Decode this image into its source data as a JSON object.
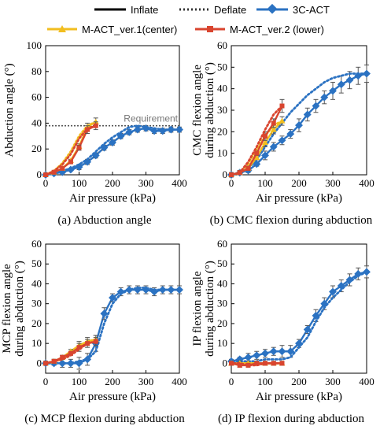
{
  "legend": {
    "items": [
      {
        "label": "Inflate",
        "style": "solid",
        "color": "#000000"
      },
      {
        "label": "Deflate",
        "style": "dotted",
        "color": "#333333"
      },
      {
        "label": "3C-ACT",
        "style": "marker",
        "color": "#2b72c2"
      },
      {
        "label": "M-ACT_ver.1(center)",
        "style": "marker",
        "color": "#f2be1f"
      },
      {
        "label": "M-ACT_ver.2 (lower)",
        "style": "marker",
        "color": "#d9452f"
      }
    ]
  },
  "colors": {
    "act3c": "#2b72c2",
    "ver1": "#f2be1f",
    "ver2": "#d9452f",
    "requirement": "#555555"
  },
  "chart_data": [
    {
      "id": "a",
      "type": "line",
      "caption": "(a) Abduction angle",
      "xlabel": "Air pressure (kPa)",
      "ylabel": [
        "Abduction angle (°)"
      ],
      "xlim": [
        0,
        400
      ],
      "ylim": [
        0,
        100
      ],
      "xticks": [
        0,
        100,
        200,
        300,
        400
      ],
      "yticks": [
        0,
        20,
        40,
        60,
        80,
        100
      ],
      "annotation": {
        "text": "Requirement",
        "y": 38
      },
      "series": [
        {
          "key": "act3c",
          "kind": "inflate",
          "x": [
            0,
            25,
            50,
            75,
            100,
            125,
            150,
            175,
            200,
            225,
            250,
            275,
            300,
            325,
            350,
            375,
            400
          ],
          "y": [
            0,
            1,
            2,
            4,
            6,
            10,
            15,
            21,
            25,
            30,
            33,
            35,
            36,
            34,
            34,
            35,
            35
          ],
          "err": [
            1,
            1,
            1,
            1,
            2,
            2,
            2,
            2,
            2,
            2,
            2,
            2,
            2,
            2,
            2,
            2,
            2
          ]
        },
        {
          "key": "act3c",
          "kind": "deflate",
          "x": [
            400,
            375,
            350,
            325,
            300,
            275,
            250,
            225,
            200,
            175,
            150,
            125,
            100,
            75,
            50,
            25,
            0
          ],
          "y": [
            35,
            35,
            35,
            36,
            37,
            38,
            37,
            33,
            29,
            24,
            18,
            12,
            8,
            5,
            3,
            1,
            0
          ]
        },
        {
          "key": "ver1",
          "kind": "inflate",
          "x": [
            0,
            25,
            50,
            75,
            100,
            125,
            150
          ],
          "y": [
            0,
            2,
            5,
            11,
            22,
            37,
            41
          ],
          "err": [
            1,
            1,
            1,
            1,
            2,
            3,
            3
          ]
        },
        {
          "key": "ver1",
          "kind": "deflate",
          "x": [
            150,
            125,
            100,
            75,
            50,
            25,
            0
          ],
          "y": [
            41,
            38,
            30,
            18,
            9,
            3,
            0
          ]
        },
        {
          "key": "ver2",
          "kind": "inflate",
          "x": [
            0,
            25,
            50,
            75,
            100,
            125,
            150
          ],
          "y": [
            0,
            2,
            5,
            10,
            21,
            35,
            38
          ],
          "err": [
            1,
            1,
            1,
            1,
            2,
            3,
            3
          ]
        },
        {
          "key": "ver2",
          "kind": "deflate",
          "x": [
            150,
            125,
            100,
            75,
            50,
            25,
            0
          ],
          "y": [
            38,
            36,
            28,
            16,
            8,
            3,
            0
          ]
        }
      ]
    },
    {
      "id": "b",
      "type": "line",
      "caption": "(b) CMC flexion during abduction",
      "xlabel": "Air pressure (kPa)",
      "ylabel": [
        "CMC flexion angle",
        "during abduction (°)"
      ],
      "xlim": [
        0,
        400
      ],
      "ylim": [
        0,
        60
      ],
      "xticks": [
        0,
        100,
        200,
        300,
        400
      ],
      "yticks": [
        0,
        10,
        20,
        30,
        40,
        50,
        60
      ],
      "series": [
        {
          "key": "act3c",
          "kind": "inflate",
          "x": [
            0,
            25,
            50,
            75,
            100,
            125,
            150,
            175,
            200,
            225,
            250,
            275,
            300,
            325,
            350,
            375,
            400
          ],
          "y": [
            0,
            1,
            2,
            5,
            9,
            13,
            16,
            19,
            23,
            28,
            32,
            36,
            39,
            42,
            44,
            46,
            47
          ],
          "err": [
            1,
            1,
            1,
            1,
            2,
            2,
            2,
            2,
            3,
            3,
            3,
            3,
            4,
            4,
            4,
            4,
            4
          ]
        },
        {
          "key": "act3c",
          "kind": "deflate",
          "x": [
            400,
            375,
            350,
            325,
            300,
            275,
            250,
            225,
            200,
            175,
            150,
            125,
            100,
            75,
            50,
            25,
            0
          ],
          "y": [
            47,
            47,
            47,
            46,
            45,
            43,
            40,
            37,
            33,
            29,
            24,
            19,
            13,
            7,
            3,
            1,
            0
          ]
        },
        {
          "key": "ver1",
          "kind": "inflate",
          "x": [
            0,
            25,
            50,
            75,
            100,
            125,
            150
          ],
          "y": [
            0,
            1,
            3,
            8,
            15,
            21,
            25
          ],
          "err": [
            1,
            1,
            1,
            1,
            2,
            2,
            2
          ]
        },
        {
          "key": "ver1",
          "kind": "deflate",
          "x": [
            150,
            125,
            100,
            75,
            50,
            25,
            0
          ],
          "y": [
            25,
            23,
            18,
            12,
            5,
            1,
            0
          ]
        },
        {
          "key": "ver2",
          "kind": "inflate",
          "x": [
            0,
            25,
            50,
            75,
            100,
            125,
            150
          ],
          "y": [
            0,
            1,
            3,
            10,
            18,
            24,
            32
          ],
          "err": [
            1,
            1,
            1,
            1,
            2,
            2,
            3
          ]
        },
        {
          "key": "ver2",
          "kind": "deflate",
          "x": [
            150,
            125,
            100,
            75,
            50,
            25,
            0
          ],
          "y": [
            32,
            28,
            21,
            13,
            6,
            1,
            0
          ]
        }
      ]
    },
    {
      "id": "c",
      "type": "line",
      "caption": "(c) MCP flexion during abduction",
      "xlabel": "Air pressure (kPa)",
      "ylabel": [
        "MCP flexion angle",
        "during abduction (°)"
      ],
      "xlim": [
        0,
        400
      ],
      "ylim": [
        -5,
        60
      ],
      "xticks": [
        0,
        100,
        200,
        300,
        400
      ],
      "yticks": [
        0,
        10,
        20,
        30,
        40,
        50,
        60
      ],
      "series": [
        {
          "key": "act3c",
          "kind": "inflate",
          "x": [
            0,
            25,
            50,
            75,
            100,
            125,
            150,
            175,
            200,
            225,
            250,
            275,
            300,
            325,
            350,
            375,
            400
          ],
          "y": [
            0,
            0,
            0,
            0,
            0,
            2,
            10,
            25,
            33,
            36,
            37,
            37,
            37,
            36,
            37,
            37,
            37
          ],
          "err": [
            1,
            1,
            2,
            2,
            3,
            3,
            4,
            3,
            2,
            2,
            2,
            2,
            2,
            2,
            2,
            2,
            2
          ]
        },
        {
          "key": "act3c",
          "kind": "deflate",
          "x": [
            400,
            375,
            350,
            325,
            300,
            275,
            250,
            225,
            200,
            175,
            150,
            125,
            100,
            75,
            50,
            25,
            0
          ],
          "y": [
            37,
            37,
            37,
            37,
            38,
            38,
            37,
            35,
            30,
            20,
            6,
            2,
            1,
            0,
            0,
            0,
            0
          ]
        },
        {
          "key": "ver1",
          "kind": "inflate",
          "x": [
            0,
            25,
            50,
            75,
            100,
            125,
            150
          ],
          "y": [
            0,
            1,
            3,
            6,
            9,
            11,
            12
          ],
          "err": [
            1,
            1,
            1,
            1,
            2,
            2,
            2
          ]
        },
        {
          "key": "ver1",
          "kind": "deflate",
          "x": [
            150,
            125,
            100,
            75,
            50,
            25,
            0
          ],
          "y": [
            12,
            11,
            8,
            5,
            2,
            1,
            0
          ]
        },
        {
          "key": "ver2",
          "kind": "inflate",
          "x": [
            0,
            25,
            50,
            75,
            100,
            125,
            150
          ],
          "y": [
            0,
            1,
            3,
            5,
            8,
            10,
            11
          ],
          "err": [
            1,
            1,
            1,
            1,
            2,
            2,
            2
          ]
        },
        {
          "key": "ver2",
          "kind": "deflate",
          "x": [
            150,
            125,
            100,
            75,
            50,
            25,
            0
          ],
          "y": [
            11,
            10,
            7,
            4,
            2,
            1,
            0
          ]
        }
      ]
    },
    {
      "id": "d",
      "type": "line",
      "caption": "(d) IP flexion during abduction",
      "xlabel": "Air pressure (kPa)",
      "ylabel": [
        "IP flexion angle",
        "during abduction (°)"
      ],
      "xlim": [
        0,
        400
      ],
      "ylim": [
        -5,
        60
      ],
      "xticks": [
        0,
        100,
        200,
        300,
        400
      ],
      "yticks": [
        0,
        10,
        20,
        30,
        40,
        50,
        60
      ],
      "series": [
        {
          "key": "act3c",
          "kind": "inflate",
          "x": [
            0,
            25,
            50,
            75,
            100,
            125,
            150,
            175,
            200,
            225,
            250,
            275,
            300,
            325,
            350,
            375,
            400
          ],
          "y": [
            1,
            2,
            3,
            4,
            5,
            6,
            6,
            6,
            10,
            17,
            24,
            30,
            36,
            39,
            42,
            45,
            46
          ],
          "err": [
            1,
            1,
            2,
            2,
            2,
            2,
            3,
            3,
            2,
            2,
            3,
            3,
            3,
            3,
            3,
            3,
            3
          ]
        },
        {
          "key": "act3c",
          "kind": "deflate",
          "x": [
            400,
            375,
            350,
            325,
            300,
            275,
            250,
            225,
            200,
            175,
            150,
            125,
            100,
            75,
            50,
            25,
            0
          ],
          "y": [
            46,
            44,
            41,
            37,
            33,
            28,
            21,
            13,
            8,
            3,
            2,
            2,
            2,
            1,
            1,
            1,
            0
          ]
        },
        {
          "key": "ver1",
          "kind": "inflate",
          "x": [
            0,
            25,
            50,
            75,
            100,
            125,
            150
          ],
          "y": [
            0,
            0,
            0,
            0,
            0,
            0,
            0
          ],
          "err": [
            1,
            1,
            1,
            1,
            1,
            1,
            1
          ]
        },
        {
          "key": "ver1",
          "kind": "deflate",
          "x": [
            150,
            125,
            100,
            75,
            50,
            25,
            0
          ],
          "y": [
            0,
            0,
            0,
            0,
            0,
            0,
            0
          ]
        },
        {
          "key": "ver2",
          "kind": "inflate",
          "x": [
            0,
            25,
            50,
            75,
            100,
            125,
            150
          ],
          "y": [
            0,
            -1,
            -1,
            0,
            0,
            0,
            0
          ],
          "err": [
            1,
            1,
            1,
            1,
            1,
            1,
            1
          ]
        },
        {
          "key": "ver2",
          "kind": "deflate",
          "x": [
            150,
            125,
            100,
            75,
            50,
            25,
            0
          ],
          "y": [
            0,
            0,
            0,
            -1,
            -1,
            0,
            0
          ]
        }
      ]
    }
  ]
}
